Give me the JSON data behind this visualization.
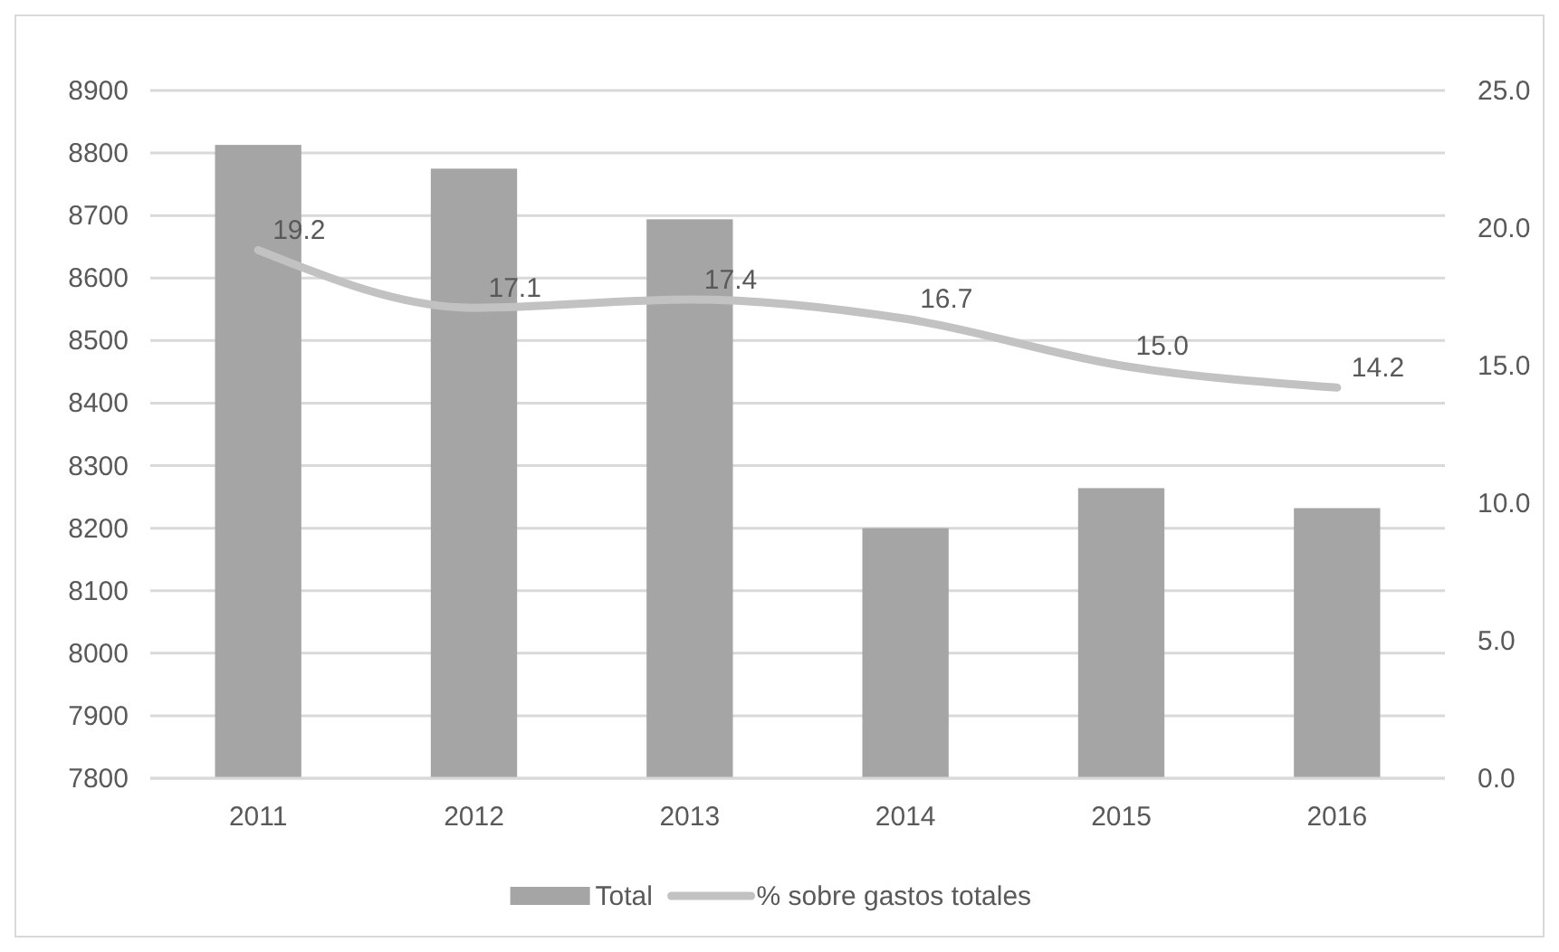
{
  "chart_data": {
    "type": "bar",
    "categories": [
      "2011",
      "2012",
      "2013",
      "2014",
      "2015",
      "2016"
    ],
    "series": [
      {
        "name": "Total",
        "color": "#a5a5a5",
        "values": [
          8813,
          8775,
          8694,
          8200,
          8264,
          8232
        ]
      },
      {
        "name": "% sobre gastos totales",
        "type": "line",
        "axis": "y2",
        "color": "#c2c2c2",
        "values": [
          19.2,
          17.1,
          17.4,
          16.7,
          15.0,
          14.2
        ],
        "value_labels": [
          "19.2",
          "17.1",
          "17.4",
          "16.7",
          "15.0",
          "14.2"
        ]
      }
    ],
    "ylim": [
      7800,
      8900
    ],
    "yticks": [
      7800,
      7900,
      8000,
      8100,
      8200,
      8300,
      8400,
      8500,
      8600,
      8700,
      8800,
      8900
    ],
    "y2lim": [
      0,
      25
    ],
    "y2ticks": [
      {
        "value": 0,
        "label": "0.0"
      },
      {
        "value": 5,
        "label": "5.0"
      },
      {
        "value": 10,
        "label": "10.0"
      },
      {
        "value": 15,
        "label": "15.0"
      },
      {
        "value": 20,
        "label": "20.0"
      },
      {
        "value": 25,
        "label": "25.0"
      }
    ],
    "grid": "y",
    "legend": "bottom",
    "marker": "none"
  }
}
